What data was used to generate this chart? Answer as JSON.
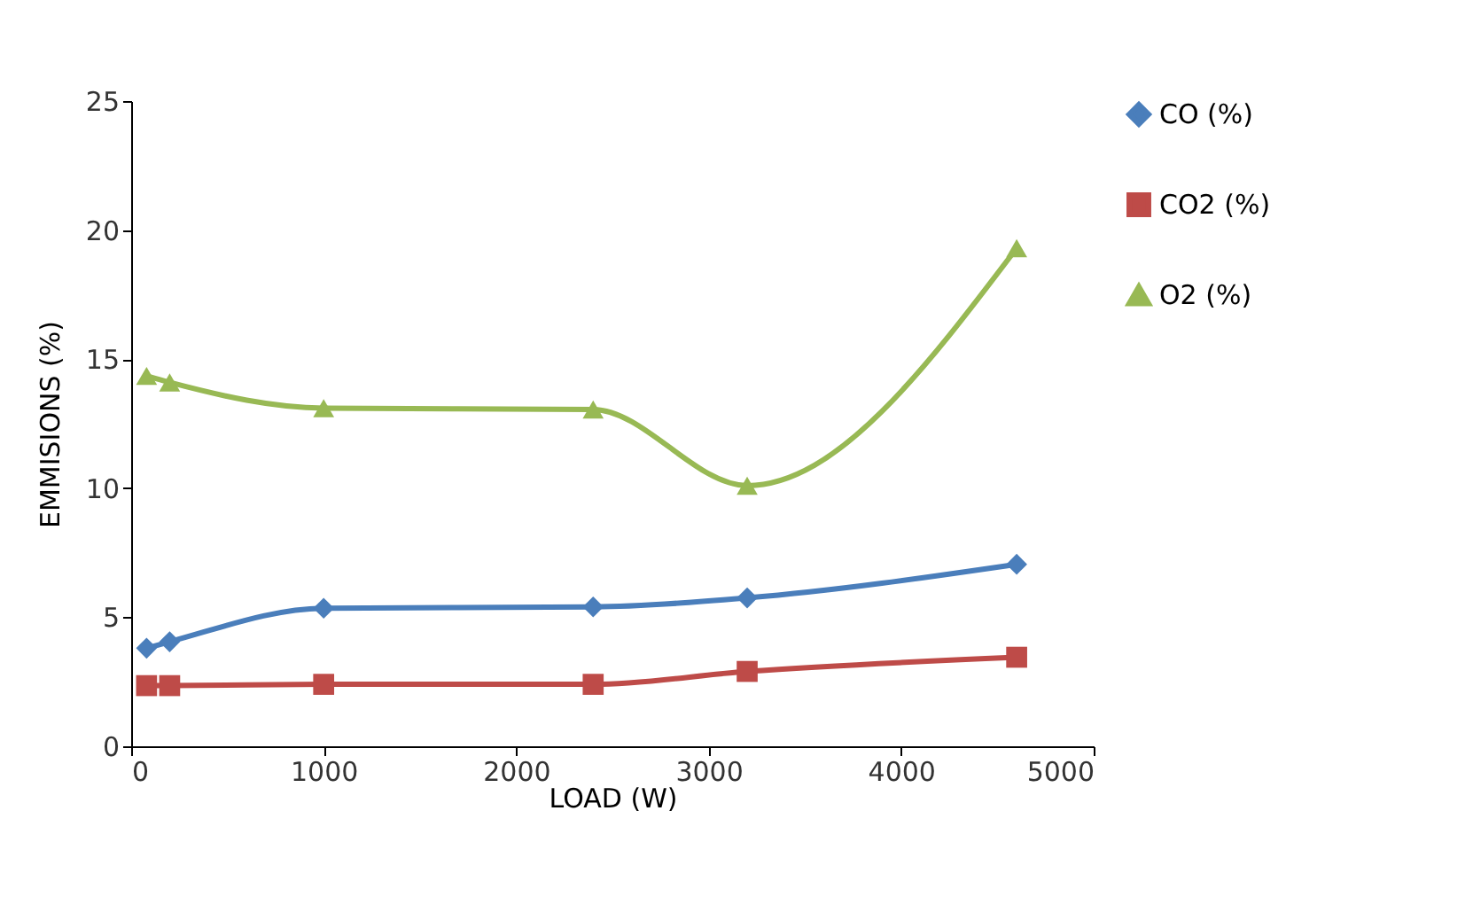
{
  "chart_data": {
    "type": "line",
    "xlabel": "LOAD (W)",
    "ylabel": "EMMISIONS  (%)",
    "xlim": [
      0,
      5000
    ],
    "xticks": [
      0,
      1000,
      2000,
      3000,
      4000,
      5000
    ],
    "ylim": [
      0,
      25
    ],
    "yticks": [
      0,
      5,
      10,
      15,
      20,
      25
    ],
    "x": [
      80,
      200,
      1000,
      2400,
      3200,
      4600
    ],
    "series": [
      {
        "name": "CO (%)",
        "color": "#4a7ebb",
        "marker": "diamond",
        "values": [
          3.8,
          4.05,
          5.35,
          5.4,
          5.75,
          7.05
        ]
      },
      {
        "name": "CO2 (%)",
        "color": "#be4b48",
        "marker": "square",
        "values": [
          2.35,
          2.35,
          2.4,
          2.4,
          2.9,
          3.45
        ]
      },
      {
        "name": "O2 (%)",
        "color": "#98b954",
        "marker": "triangle",
        "values": [
          14.35,
          14.1,
          13.1,
          13.05,
          10.1,
          19.3
        ]
      }
    ],
    "grid": false,
    "legend": "right",
    "line_style": "solid"
  }
}
